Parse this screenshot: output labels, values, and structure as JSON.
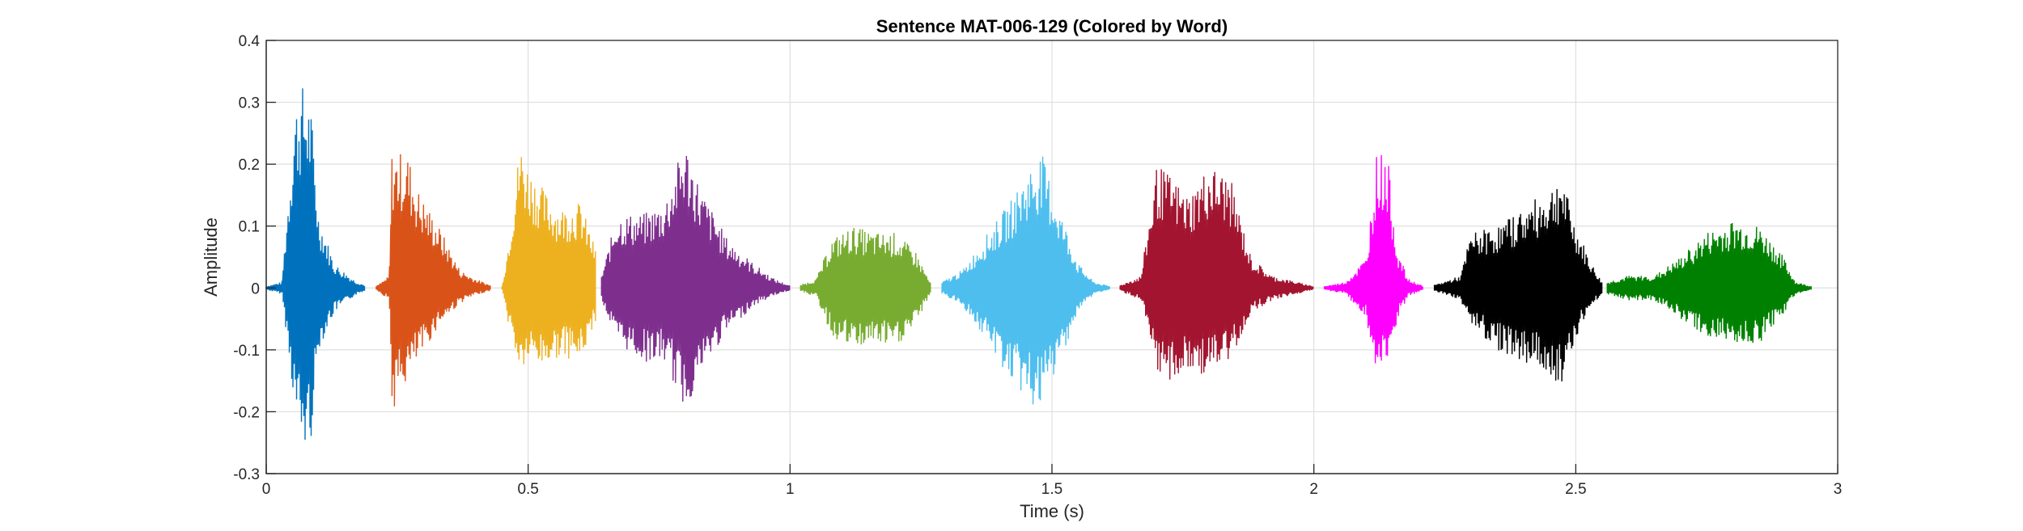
{
  "chart_data": {
    "type": "line",
    "title": "Sentence MAT-006-129 (Colored by Word)",
    "xlabel": "Time (s)",
    "ylabel": "Amplitude",
    "xlim": [
      0,
      3
    ],
    "ylim": [
      -0.3,
      0.4
    ],
    "xticks": [
      0,
      0.5,
      1,
      1.5,
      2,
      2.5,
      3
    ],
    "xtick_labels": [
      "0",
      "0.5",
      "1",
      "1.5",
      "2",
      "2.5",
      "3"
    ],
    "yticks": [
      -0.3,
      -0.2,
      -0.1,
      0,
      0.1,
      0.2,
      0.3,
      0.4
    ],
    "ytick_labels": [
      "-0.3",
      "-0.2",
      "-0.1",
      "0",
      "0.1",
      "0.2",
      "0.3",
      "0.4"
    ],
    "grid": true,
    "series": [
      {
        "start": 0.0,
        "end": 0.19,
        "color": "#0072BD",
        "env": [
          [
            0.0,
            0.003
          ],
          [
            0.03,
            0.01
          ],
          [
            0.055,
            0.3
          ],
          [
            0.07,
            0.33
          ],
          [
            0.085,
            0.3
          ],
          [
            0.1,
            0.12
          ],
          [
            0.13,
            0.04
          ],
          [
            0.17,
            0.012
          ],
          [
            0.19,
            0.004
          ]
        ],
        "envn": [
          [
            0.0,
            -0.003
          ],
          [
            0.03,
            -0.01
          ],
          [
            0.055,
            -0.2
          ],
          [
            0.07,
            -0.27
          ],
          [
            0.085,
            -0.25
          ],
          [
            0.1,
            -0.1
          ],
          [
            0.13,
            -0.04
          ],
          [
            0.17,
            -0.012
          ],
          [
            0.19,
            -0.004
          ]
        ]
      },
      {
        "start": 0.21,
        "end": 0.43,
        "color": "#D95319",
        "env": [
          [
            0.21,
            0.003
          ],
          [
            0.235,
            0.02
          ],
          [
            0.24,
            0.22
          ],
          [
            0.27,
            0.22
          ],
          [
            0.29,
            0.16
          ],
          [
            0.33,
            0.1
          ],
          [
            0.37,
            0.03
          ],
          [
            0.4,
            0.015
          ],
          [
            0.43,
            0.004
          ]
        ],
        "envn": [
          [
            0.21,
            -0.003
          ],
          [
            0.235,
            -0.02
          ],
          [
            0.24,
            -0.2
          ],
          [
            0.27,
            -0.15
          ],
          [
            0.29,
            -0.12
          ],
          [
            0.33,
            -0.06
          ],
          [
            0.37,
            -0.025
          ],
          [
            0.4,
            -0.012
          ],
          [
            0.43,
            -0.004
          ]
        ]
      },
      {
        "start": 0.45,
        "end": 0.63,
        "color": "#EDB120",
        "env": [
          [
            0.45,
            0.003
          ],
          [
            0.46,
            0.06
          ],
          [
            0.485,
            0.24
          ],
          [
            0.5,
            0.2
          ],
          [
            0.53,
            0.16
          ],
          [
            0.56,
            0.13
          ],
          [
            0.6,
            0.14
          ],
          [
            0.63,
            0.06
          ]
        ],
        "envn": [
          [
            0.45,
            -0.003
          ],
          [
            0.46,
            -0.05
          ],
          [
            0.485,
            -0.14
          ],
          [
            0.5,
            -0.12
          ],
          [
            0.53,
            -0.13
          ],
          [
            0.56,
            -0.11
          ],
          [
            0.6,
            -0.12
          ],
          [
            0.63,
            -0.05
          ]
        ]
      },
      {
        "start": 0.64,
        "end": 1.0,
        "color": "#7E2F8E",
        "env": [
          [
            0.64,
            0.02
          ],
          [
            0.67,
            0.12
          ],
          [
            0.72,
            0.12
          ],
          [
            0.76,
            0.14
          ],
          [
            0.8,
            0.24
          ],
          [
            0.83,
            0.16
          ],
          [
            0.88,
            0.08
          ],
          [
            0.93,
            0.04
          ],
          [
            0.97,
            0.015
          ],
          [
            1.0,
            0.004
          ]
        ],
        "envn": [
          [
            0.64,
            -0.02
          ],
          [
            0.67,
            -0.09
          ],
          [
            0.72,
            -0.12
          ],
          [
            0.76,
            -0.12
          ],
          [
            0.8,
            -0.2
          ],
          [
            0.83,
            -0.14
          ],
          [
            0.88,
            -0.07
          ],
          [
            0.93,
            -0.03
          ],
          [
            0.97,
            -0.012
          ],
          [
            1.0,
            -0.004
          ]
        ]
      },
      {
        "start": 1.02,
        "end": 1.27,
        "color": "#77AC30",
        "env": [
          [
            1.02,
            0.005
          ],
          [
            1.05,
            0.015
          ],
          [
            1.08,
            0.08
          ],
          [
            1.12,
            0.1
          ],
          [
            1.16,
            0.09
          ],
          [
            1.2,
            0.09
          ],
          [
            1.24,
            0.06
          ],
          [
            1.27,
            0.005
          ]
        ],
        "envn": [
          [
            1.02,
            -0.005
          ],
          [
            1.05,
            -0.015
          ],
          [
            1.08,
            -0.08
          ],
          [
            1.12,
            -0.1
          ],
          [
            1.16,
            -0.09
          ],
          [
            1.2,
            -0.1
          ],
          [
            1.24,
            -0.06
          ],
          [
            1.27,
            -0.005
          ]
        ]
      },
      {
        "start": 1.29,
        "end": 1.61,
        "color": "#4DBEEE",
        "env": [
          [
            1.29,
            0.01
          ],
          [
            1.33,
            0.03
          ],
          [
            1.37,
            0.08
          ],
          [
            1.42,
            0.14
          ],
          [
            1.46,
            0.2
          ],
          [
            1.48,
            0.22
          ],
          [
            1.51,
            0.14
          ],
          [
            1.55,
            0.04
          ],
          [
            1.58,
            0.01
          ],
          [
            1.61,
            0.003
          ]
        ],
        "envn": [
          [
            1.29,
            -0.01
          ],
          [
            1.33,
            -0.03
          ],
          [
            1.37,
            -0.08
          ],
          [
            1.42,
            -0.15
          ],
          [
            1.46,
            -0.19
          ],
          [
            1.48,
            -0.2
          ],
          [
            1.51,
            -0.13
          ],
          [
            1.55,
            -0.04
          ],
          [
            1.58,
            -0.01
          ],
          [
            1.61,
            -0.003
          ]
        ]
      },
      {
        "start": 1.63,
        "end": 2.0,
        "color": "#A2142F",
        "env": [
          [
            1.63,
            0.005
          ],
          [
            1.67,
            0.02
          ],
          [
            1.7,
            0.2
          ],
          [
            1.73,
            0.18
          ],
          [
            1.76,
            0.15
          ],
          [
            1.8,
            0.2
          ],
          [
            1.84,
            0.18
          ],
          [
            1.88,
            0.05
          ],
          [
            1.92,
            0.02
          ],
          [
            2.0,
            0.003
          ]
        ],
        "envn": [
          [
            1.63,
            -0.005
          ],
          [
            1.67,
            -0.02
          ],
          [
            1.7,
            -0.15
          ],
          [
            1.73,
            -0.15
          ],
          [
            1.76,
            -0.14
          ],
          [
            1.8,
            -0.14
          ],
          [
            1.84,
            -0.12
          ],
          [
            1.88,
            -0.04
          ],
          [
            1.92,
            -0.02
          ],
          [
            2.0,
            -0.003
          ]
        ]
      },
      {
        "start": 2.02,
        "end": 2.21,
        "color": "#FF00FF",
        "env": [
          [
            2.02,
            0.003
          ],
          [
            2.06,
            0.01
          ],
          [
            2.1,
            0.05
          ],
          [
            2.12,
            0.22
          ],
          [
            2.14,
            0.22
          ],
          [
            2.16,
            0.06
          ],
          [
            2.18,
            0.015
          ],
          [
            2.21,
            0.003
          ]
        ],
        "envn": [
          [
            2.02,
            -0.003
          ],
          [
            2.06,
            -0.01
          ],
          [
            2.1,
            -0.05
          ],
          [
            2.12,
            -0.15
          ],
          [
            2.14,
            -0.13
          ],
          [
            2.16,
            -0.05
          ],
          [
            2.18,
            -0.015
          ],
          [
            2.21,
            -0.003
          ]
        ]
      },
      {
        "start": 2.23,
        "end": 2.55,
        "color": "#000000",
        "env": [
          [
            2.23,
            0.005
          ],
          [
            2.28,
            0.02
          ],
          [
            2.3,
            0.09
          ],
          [
            2.35,
            0.1
          ],
          [
            2.4,
            0.13
          ],
          [
            2.45,
            0.16
          ],
          [
            2.47,
            0.19
          ],
          [
            2.5,
            0.1
          ],
          [
            2.53,
            0.04
          ],
          [
            2.55,
            0.01
          ]
        ],
        "envn": [
          [
            2.23,
            -0.005
          ],
          [
            2.28,
            -0.02
          ],
          [
            2.3,
            -0.06
          ],
          [
            2.35,
            -0.1
          ],
          [
            2.4,
            -0.12
          ],
          [
            2.45,
            -0.14
          ],
          [
            2.47,
            -0.16
          ],
          [
            2.5,
            -0.08
          ],
          [
            2.53,
            -0.03
          ],
          [
            2.55,
            -0.01
          ]
        ]
      },
      {
        "start": 2.56,
        "end": 2.95,
        "color": "#008000",
        "env": [
          [
            2.56,
            0.01
          ],
          [
            2.6,
            0.02
          ],
          [
            2.65,
            0.02
          ],
          [
            2.7,
            0.05
          ],
          [
            2.75,
            0.09
          ],
          [
            2.8,
            0.11
          ],
          [
            2.85,
            0.1
          ],
          [
            2.89,
            0.06
          ],
          [
            2.92,
            0.01
          ],
          [
            2.95,
            0.003
          ]
        ],
        "envn": [
          [
            2.56,
            -0.01
          ],
          [
            2.6,
            -0.02
          ],
          [
            2.65,
            -0.02
          ],
          [
            2.7,
            -0.05
          ],
          [
            2.75,
            -0.08
          ],
          [
            2.8,
            -0.09
          ],
          [
            2.85,
            -0.09
          ],
          [
            2.89,
            -0.05
          ],
          [
            2.92,
            -0.01
          ],
          [
            2.95,
            -0.003
          ]
        ]
      }
    ]
  }
}
